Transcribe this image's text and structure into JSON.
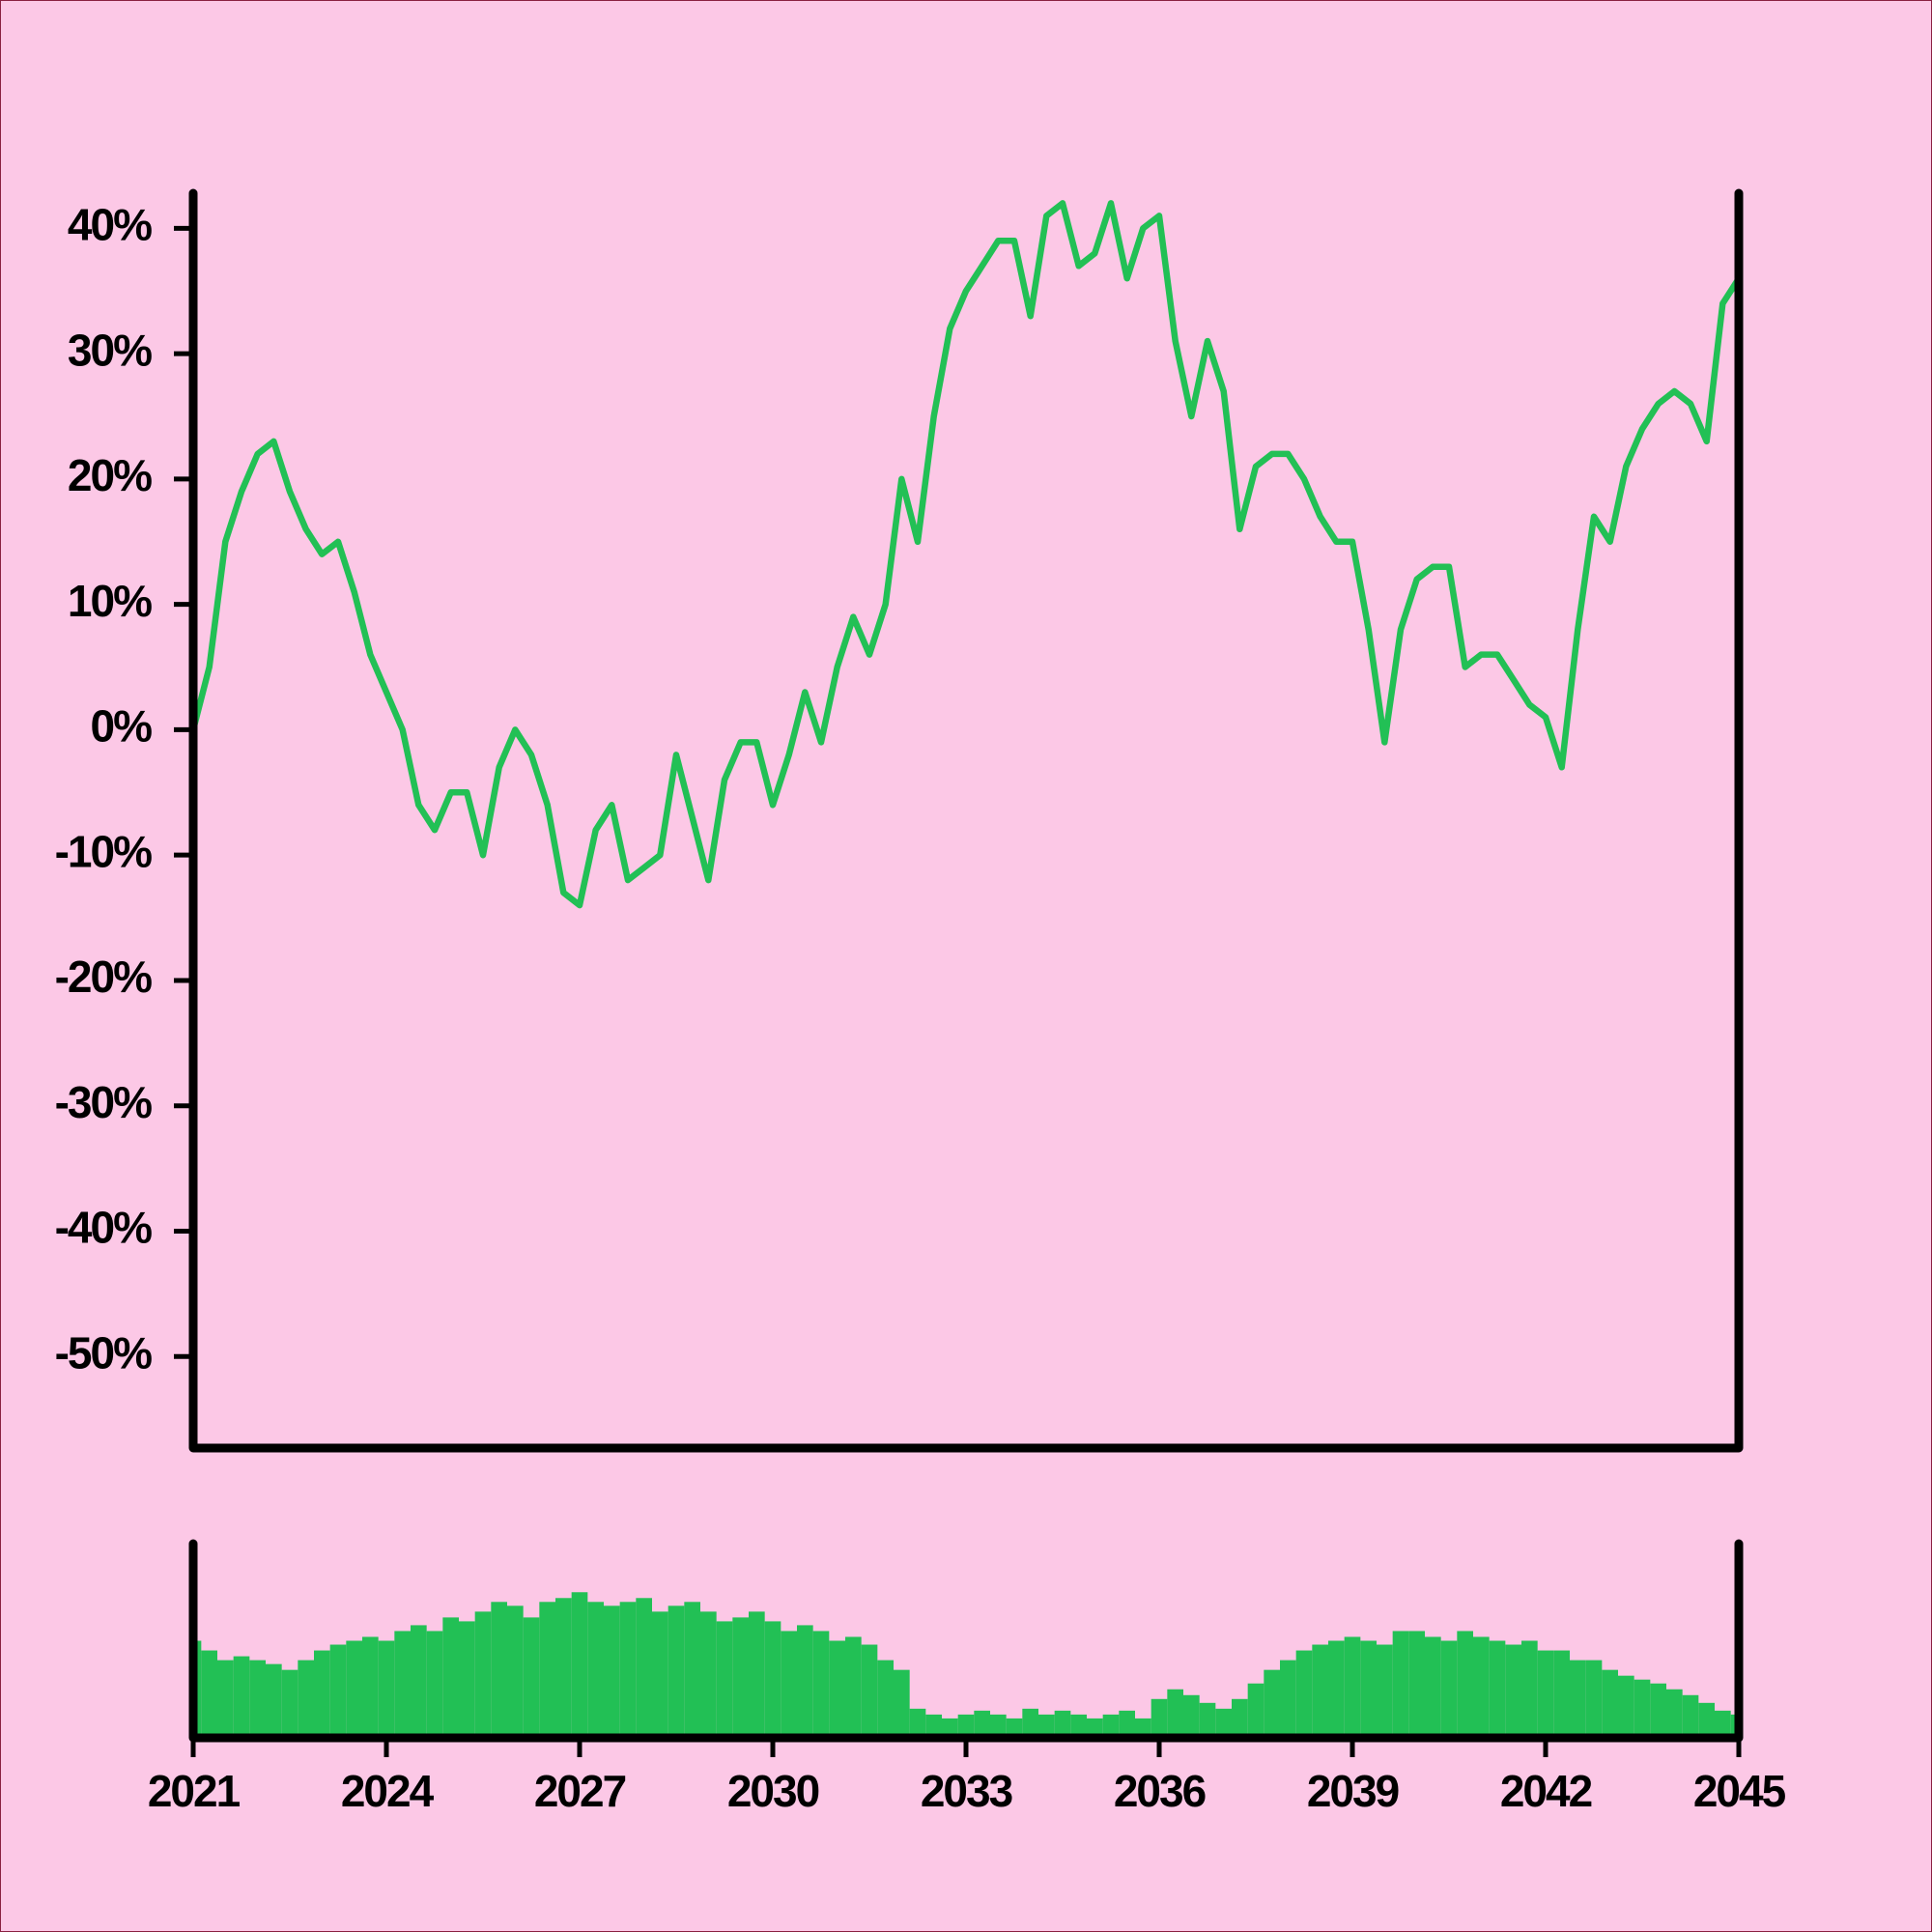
{
  "chart_data": [
    {
      "type": "line",
      "color": "#22c055",
      "x": [
        2021,
        2021.25,
        2021.5,
        2021.75,
        2022,
        2022.25,
        2022.5,
        2022.75,
        2023,
        2023.25,
        2023.5,
        2023.75,
        2024,
        2024.25,
        2024.5,
        2024.75,
        2025,
        2025.25,
        2025.5,
        2025.75,
        2026,
        2026.25,
        2026.5,
        2026.75,
        2027,
        2027.25,
        2027.5,
        2027.75,
        2028,
        2028.25,
        2028.5,
        2028.75,
        2029,
        2029.25,
        2029.5,
        2029.75,
        2030,
        2030.25,
        2030.5,
        2030.75,
        2031,
        2031.25,
        2031.5,
        2031.75,
        2032,
        2032.25,
        2032.5,
        2032.75,
        2033,
        2033.25,
        2033.5,
        2033.75,
        2034,
        2034.25,
        2034.5,
        2034.75,
        2035,
        2035.25,
        2035.5,
        2035.75,
        2036,
        2036.25,
        2036.5,
        2036.75,
        2037,
        2037.25,
        2037.5,
        2037.75,
        2038,
        2038.25,
        2038.5,
        2038.75,
        2039,
        2039.25,
        2039.5,
        2039.75,
        2040,
        2040.25,
        2040.5,
        2040.75,
        2041,
        2041.25,
        2041.5,
        2041.75,
        2042,
        2042.25,
        2042.5,
        2042.75,
        2043,
        2043.25,
        2043.5,
        2043.75,
        2044,
        2044.25,
        2044.5,
        2044.75,
        2045
      ],
      "values": [
        0,
        5,
        15,
        19,
        22,
        23,
        19,
        16,
        14,
        15,
        11,
        6,
        3,
        0,
        -6,
        -8,
        -5,
        -5,
        -10,
        -3,
        0,
        -2,
        -6,
        -13,
        -14,
        -8,
        -6,
        -12,
        -11,
        -10,
        -2,
        -7,
        -12,
        -4,
        -1,
        -1,
        -6,
        -2,
        3,
        -1,
        5,
        9,
        6,
        10,
        20,
        15,
        25,
        32,
        35,
        37,
        39,
        39,
        33,
        41,
        42,
        37,
        38,
        42,
        36,
        40,
        41,
        31,
        25,
        31,
        27,
        16,
        21,
        22,
        22,
        20,
        17,
        15,
        15,
        8,
        -1,
        8,
        12,
        13,
        13,
        5,
        6,
        6,
        4,
        2,
        1,
        -3,
        8,
        17,
        15,
        21,
        24,
        26,
        27,
        26,
        23,
        34,
        36
      ],
      "xlim": [
        2021,
        2045
      ],
      "ylim": [
        -57.3,
        42.8
      ],
      "yticks": [
        {
          "value": 40,
          "label": "40%"
        },
        {
          "value": 30,
          "label": "30%"
        },
        {
          "value": 20,
          "label": "20%"
        },
        {
          "value": 10,
          "label": "10%"
        },
        {
          "value": 0,
          "label": "0%"
        },
        {
          "value": -10,
          "label": "-10%"
        },
        {
          "value": -20,
          "label": "-20%"
        },
        {
          "value": -30,
          "label": "-30%"
        },
        {
          "value": -40,
          "label": "-40%"
        },
        {
          "value": -50,
          "label": "-50%"
        }
      ]
    },
    {
      "type": "bar",
      "color": "#22c055",
      "x": [
        2021,
        2021.25,
        2021.5,
        2021.75,
        2022,
        2022.25,
        2022.5,
        2022.75,
        2023,
        2023.25,
        2023.5,
        2023.75,
        2024,
        2024.25,
        2024.5,
        2024.75,
        2025,
        2025.25,
        2025.5,
        2025.75,
        2026,
        2026.25,
        2026.5,
        2026.75,
        2027,
        2027.25,
        2027.5,
        2027.75,
        2028,
        2028.25,
        2028.5,
        2028.75,
        2029,
        2029.25,
        2029.5,
        2029.75,
        2030,
        2030.25,
        2030.5,
        2030.75,
        2031,
        2031.25,
        2031.5,
        2031.75,
        2032,
        2032.25,
        2032.5,
        2032.75,
        2033,
        2033.25,
        2033.5,
        2033.75,
        2034,
        2034.25,
        2034.5,
        2034.75,
        2035,
        2035.25,
        2035.5,
        2035.75,
        2036,
        2036.25,
        2036.5,
        2036.75,
        2037,
        2037.25,
        2037.5,
        2037.75,
        2038,
        2038.25,
        2038.5,
        2038.75,
        2039,
        2039.25,
        2039.5,
        2039.75,
        2040,
        2040.25,
        2040.5,
        2040.75,
        2041,
        2041.25,
        2041.5,
        2041.75,
        2042,
        2042.25,
        2042.5,
        2042.75,
        2043,
        2043.25,
        2043.5,
        2043.75,
        2044,
        2044.25,
        2044.5,
        2044.75,
        2045
      ],
      "values": [
        50,
        45,
        40,
        42,
        40,
        38,
        35,
        40,
        45,
        48,
        50,
        52,
        50,
        55,
        58,
        55,
        62,
        60,
        65,
        70,
        68,
        62,
        70,
        72,
        75,
        70,
        68,
        70,
        72,
        65,
        68,
        70,
        65,
        60,
        62,
        65,
        60,
        55,
        58,
        55,
        50,
        52,
        48,
        40,
        35,
        15,
        12,
        10,
        12,
        14,
        12,
        10,
        15,
        12,
        14,
        12,
        10,
        12,
        14,
        10,
        20,
        25,
        22,
        18,
        15,
        20,
        28,
        35,
        40,
        45,
        48,
        50,
        52,
        50,
        48,
        55,
        55,
        52,
        50,
        55,
        52,
        50,
        48,
        50,
        45,
        45,
        40,
        40,
        35,
        32,
        30,
        28,
        25,
        22,
        18,
        14,
        12
      ],
      "xlim": [
        2021,
        2045
      ],
      "ylim": [
        0,
        100
      ],
      "xticks": [
        2021,
        2024,
        2027,
        2030,
        2033,
        2036,
        2039,
        2042,
        2045
      ]
    }
  ]
}
